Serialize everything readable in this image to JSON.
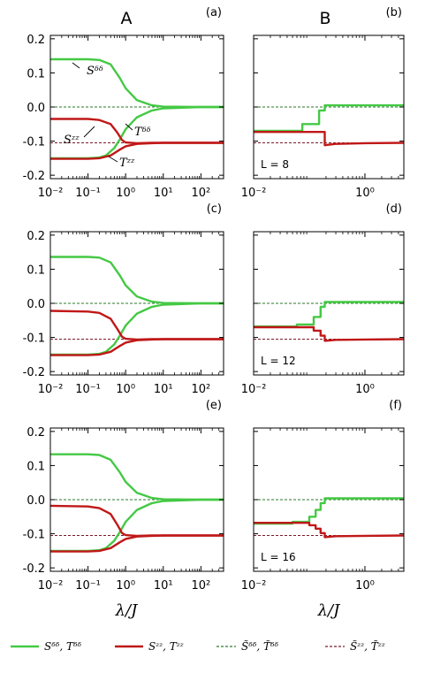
{
  "columns": [
    "A",
    "B"
  ],
  "xlabel": "λ/J",
  "legend": [
    {
      "label": "Sᵟᵟ, Tᵟᵟ",
      "color": "#44c944",
      "style": "solid"
    },
    {
      "label": "Sᶻᶻ, Tᶻᶻ",
      "color": "#c01818",
      "style": "solid"
    },
    {
      "label": "S̃ᵟᵟ, T̃ᵟᵟ",
      "color": "#2a7a2a",
      "style": "dashed"
    },
    {
      "label": "S̃ᶻᶻ, T̃ᶻᶻ",
      "color": "#7a1a2a",
      "style": "dashed"
    }
  ],
  "colors": {
    "green": "#44c944",
    "red": "#c01818",
    "dgreen": "#2a7a2a",
    "dred": "#7a1a2a"
  },
  "chart_data": [
    {
      "panel": "(a)",
      "type": "line",
      "xscale": "log",
      "xlim": [
        0.01,
        400
      ],
      "ylim": [
        -0.21,
        0.21
      ],
      "xticks": [
        "10⁻²",
        "10⁻¹",
        "10⁰",
        "10¹",
        "10²"
      ],
      "yticks": [
        "0.2",
        "0.1",
        "0.0",
        "-0.1",
        "-0.2"
      ],
      "series": [
        {
          "name": "Sᵟᵟ",
          "x": [
            0.01,
            0.1,
            0.2,
            0.4,
            0.7,
            1,
            2,
            5,
            10,
            100,
            400
          ],
          "y": [
            0.14,
            0.14,
            0.138,
            0.125,
            0.085,
            0.055,
            0.02,
            0.005,
            0.001,
            0,
            0
          ]
        },
        {
          "name": "Tᵟᵟ",
          "x": [
            0.01,
            0.1,
            0.2,
            0.3,
            0.5,
            0.7,
            1,
            2,
            5,
            10,
            100,
            400
          ],
          "y": [
            -0.15,
            -0.15,
            -0.148,
            -0.142,
            -0.12,
            -0.095,
            -0.065,
            -0.03,
            -0.01,
            -0.004,
            0,
            0
          ]
        },
        {
          "name": "Sᶻᶻ",
          "x": [
            0.01,
            0.1,
            0.2,
            0.4,
            0.6,
            0.8,
            1,
            2,
            5,
            10,
            100,
            400
          ],
          "y": [
            -0.035,
            -0.035,
            -0.038,
            -0.05,
            -0.075,
            -0.097,
            -0.104,
            -0.106,
            -0.105,
            -0.105,
            -0.105,
            -0.105
          ]
        },
        {
          "name": "Tᶻᶻ",
          "x": [
            0.01,
            0.1,
            0.2,
            0.4,
            0.7,
            1,
            2,
            5,
            10,
            100,
            400
          ],
          "y": [
            -0.152,
            -0.152,
            -0.15,
            -0.142,
            -0.125,
            -0.115,
            -0.108,
            -0.106,
            -0.105,
            -0.105,
            -0.105
          ]
        }
      ],
      "reference_lines": [
        0.0,
        -0.105
      ],
      "annotations": [
        "Sᵟᵟ",
        "Tᵟᵟ",
        "Sᶻᶻ",
        "Tᶻᶻ"
      ]
    },
    {
      "panel": "(b)",
      "type": "line",
      "xscale": "log",
      "xlim": [
        0.01,
        5
      ],
      "ylim": [
        -0.21,
        0.21
      ],
      "xticks": [
        "10⁻²",
        "10⁰"
      ],
      "box_label": "L = 8",
      "series": [
        {
          "name": "Sᵟᵟ, Tᵟᵟ",
          "x": [
            0.01,
            0.075,
            0.075,
            0.15,
            0.15,
            0.19,
            0.19,
            5
          ],
          "y": [
            -0.07,
            -0.07,
            -0.05,
            -0.05,
            -0.01,
            -0.01,
            0.005,
            0.005
          ]
        },
        {
          "name": "Sᶻᶻ, Tᶻᶻ",
          "x": [
            0.01,
            0.19,
            0.19,
            0.3,
            1,
            5
          ],
          "y": [
            -0.073,
            -0.073,
            -0.112,
            -0.108,
            -0.106,
            -0.105
          ]
        }
      ],
      "reference_lines": [
        0.0,
        -0.105
      ]
    },
    {
      "panel": "(c)",
      "type": "line",
      "xscale": "log",
      "xlim": [
        0.01,
        400
      ],
      "ylim": [
        -0.21,
        0.21
      ],
      "xticks": [
        "10⁻²",
        "10⁻¹",
        "10⁰",
        "10¹",
        "10²"
      ],
      "yticks": [
        "0.2",
        "0.1",
        "0.0",
        "-0.1",
        "-0.2"
      ],
      "series": [
        {
          "name": "Sᵟᵟ",
          "x": [
            0.01,
            0.1,
            0.2,
            0.4,
            0.7,
            1,
            2,
            5,
            10,
            100,
            400
          ],
          "y": [
            0.136,
            0.136,
            0.134,
            0.12,
            0.082,
            0.053,
            0.02,
            0.005,
            0.001,
            0,
            0
          ]
        },
        {
          "name": "Tᵟᵟ",
          "x": [
            0.01,
            0.1,
            0.2,
            0.3,
            0.5,
            0.7,
            1,
            2,
            5,
            10,
            100,
            400
          ],
          "y": [
            -0.15,
            -0.15,
            -0.148,
            -0.142,
            -0.12,
            -0.095,
            -0.065,
            -0.03,
            -0.01,
            -0.004,
            0,
            0
          ]
        },
        {
          "name": "Sᶻᶻ",
          "x": [
            0.01,
            0.1,
            0.2,
            0.4,
            0.6,
            0.8,
            1,
            2,
            5,
            10,
            100,
            400
          ],
          "y": [
            -0.022,
            -0.024,
            -0.028,
            -0.045,
            -0.075,
            -0.098,
            -0.104,
            -0.106,
            -0.105,
            -0.105,
            -0.105,
            -0.105
          ]
        },
        {
          "name": "Tᶻᶻ",
          "x": [
            0.01,
            0.1,
            0.2,
            0.4,
            0.7,
            1,
            2,
            5,
            10,
            100,
            400
          ],
          "y": [
            -0.152,
            -0.152,
            -0.15,
            -0.142,
            -0.125,
            -0.115,
            -0.108,
            -0.106,
            -0.105,
            -0.105,
            -0.105
          ]
        }
      ],
      "reference_lines": [
        0.0,
        -0.105
      ]
    },
    {
      "panel": "(d)",
      "type": "line",
      "xscale": "log",
      "xlim": [
        0.01,
        5
      ],
      "ylim": [
        -0.21,
        0.21
      ],
      "xticks": [
        "10⁻²",
        "10⁰"
      ],
      "box_label": "L = 12",
      "series": [
        {
          "name": "Sᵟᵟ, Tᵟᵟ",
          "x": [
            0.01,
            0.06,
            0.06,
            0.12,
            0.12,
            0.16,
            0.16,
            0.19,
            0.19,
            5
          ],
          "y": [
            -0.068,
            -0.068,
            -0.062,
            -0.062,
            -0.04,
            -0.04,
            -0.01,
            -0.01,
            0.004,
            0.004
          ]
        },
        {
          "name": "Sᶻᶻ, Tᶻᶻ",
          "x": [
            0.01,
            0.12,
            0.12,
            0.16,
            0.16,
            0.19,
            0.19,
            0.3,
            1,
            5
          ],
          "y": [
            -0.07,
            -0.07,
            -0.08,
            -0.08,
            -0.095,
            -0.095,
            -0.11,
            -0.107,
            -0.106,
            -0.105
          ]
        }
      ],
      "reference_lines": [
        0.0,
        -0.105
      ]
    },
    {
      "panel": "(e)",
      "type": "line",
      "xscale": "log",
      "xlim": [
        0.01,
        400
      ],
      "ylim": [
        -0.21,
        0.21
      ],
      "xticks": [
        "10⁻²",
        "10⁻¹",
        "10⁰",
        "10¹",
        "10²"
      ],
      "yticks": [
        "0.2",
        "0.1",
        "0.0",
        "-0.1",
        "-0.2"
      ],
      "series": [
        {
          "name": "Sᵟᵟ",
          "x": [
            0.01,
            0.1,
            0.2,
            0.4,
            0.7,
            1,
            2,
            5,
            10,
            100,
            400
          ],
          "y": [
            0.133,
            0.133,
            0.131,
            0.117,
            0.08,
            0.052,
            0.02,
            0.005,
            0.001,
            0,
            0
          ]
        },
        {
          "name": "Tᵟᵟ",
          "x": [
            0.01,
            0.1,
            0.2,
            0.3,
            0.5,
            0.7,
            1,
            2,
            5,
            10,
            100,
            400
          ],
          "y": [
            -0.15,
            -0.15,
            -0.148,
            -0.142,
            -0.12,
            -0.095,
            -0.065,
            -0.03,
            -0.01,
            -0.004,
            0,
            0
          ]
        },
        {
          "name": "Sᶻᶻ",
          "x": [
            0.01,
            0.1,
            0.2,
            0.4,
            0.6,
            0.8,
            1,
            2,
            5,
            10,
            100,
            400
          ],
          "y": [
            -0.018,
            -0.02,
            -0.025,
            -0.042,
            -0.073,
            -0.098,
            -0.104,
            -0.106,
            -0.105,
            -0.105,
            -0.105,
            -0.105
          ]
        },
        {
          "name": "Tᶻᶻ",
          "x": [
            0.01,
            0.1,
            0.2,
            0.4,
            0.7,
            1,
            2,
            5,
            10,
            100,
            400
          ],
          "y": [
            -0.152,
            -0.152,
            -0.15,
            -0.142,
            -0.125,
            -0.115,
            -0.108,
            -0.106,
            -0.105,
            -0.105,
            -0.105
          ]
        }
      ],
      "reference_lines": [
        0.0,
        -0.105
      ]
    },
    {
      "panel": "(f)",
      "type": "line",
      "xscale": "log",
      "xlim": [
        0.01,
        5
      ],
      "ylim": [
        -0.21,
        0.21
      ],
      "xticks": [
        "10⁻²",
        "10⁰"
      ],
      "box_label": "L = 16",
      "series": [
        {
          "name": "Sᵟᵟ, Tᵟᵟ",
          "x": [
            0.01,
            0.05,
            0.05,
            0.1,
            0.1,
            0.13,
            0.13,
            0.16,
            0.16,
            0.19,
            0.19,
            5
          ],
          "y": [
            -0.07,
            -0.07,
            -0.065,
            -0.065,
            -0.05,
            -0.05,
            -0.03,
            -0.03,
            -0.01,
            -0.01,
            0.004,
            0.004
          ]
        },
        {
          "name": "Sᶻᶻ, Tᶻᶻ",
          "x": [
            0.01,
            0.1,
            0.1,
            0.13,
            0.13,
            0.16,
            0.16,
            0.19,
            0.19,
            0.3,
            1,
            5
          ],
          "y": [
            -0.068,
            -0.068,
            -0.075,
            -0.075,
            -0.085,
            -0.085,
            -0.098,
            -0.098,
            -0.11,
            -0.107,
            -0.106,
            -0.105
          ]
        }
      ],
      "reference_lines": [
        0.0,
        -0.105
      ]
    }
  ]
}
